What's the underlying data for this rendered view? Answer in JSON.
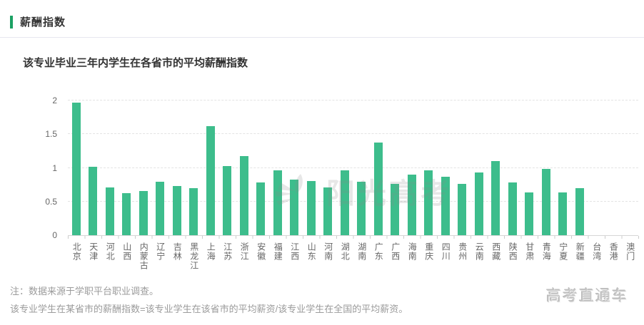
{
  "page": {
    "section_title": "薪酬指数",
    "note_line1": "注：数据来源于学职平台职业调查。",
    "note_line2": "该专业学生在某省市的薪酬指数=该专业学生在该省市的平均薪资/该专业学生在全国的平均薪资。",
    "watermark_text": "阳光高考",
    "brand_text": "高考直通车"
  },
  "colors": {
    "bar": "#3dbd8c",
    "accent": "#1ba163",
    "grid": "#e3e3e3",
    "axis": "#d6d6d6"
  },
  "chart_data": {
    "type": "bar",
    "title": "该专业毕业三年内学生在各省市的平均薪酬指数",
    "xlabel": "",
    "ylabel": "",
    "ylim": [
      0,
      2
    ],
    "yticks": [
      0,
      0.5,
      1,
      1.5,
      2
    ],
    "grid": "horizontal-dashed",
    "legend": "none",
    "categories": [
      "北京",
      "天津",
      "河北",
      "山西",
      "内蒙古",
      "辽宁",
      "吉林",
      "黑龙江",
      "上海",
      "江苏",
      "浙江",
      "安徽",
      "福建",
      "江西",
      "山东",
      "河南",
      "湖北",
      "湖南",
      "广东",
      "广西",
      "海南",
      "重庆",
      "四川",
      "贵州",
      "云南",
      "西藏",
      "陕西",
      "甘肃",
      "青海",
      "宁夏",
      "新疆",
      "台湾",
      "香港",
      "澳门"
    ],
    "values": [
      1.97,
      1.02,
      0.71,
      0.62,
      0.66,
      0.79,
      0.73,
      0.7,
      1.62,
      1.03,
      1.18,
      0.78,
      0.96,
      0.83,
      0.8,
      0.71,
      0.96,
      0.79,
      1.38,
      0.76,
      0.9,
      0.96,
      0.87,
      0.76,
      0.93,
      1.1,
      0.78,
      0.64,
      0.98,
      0.64,
      0.7,
      0,
      0,
      0
    ]
  }
}
